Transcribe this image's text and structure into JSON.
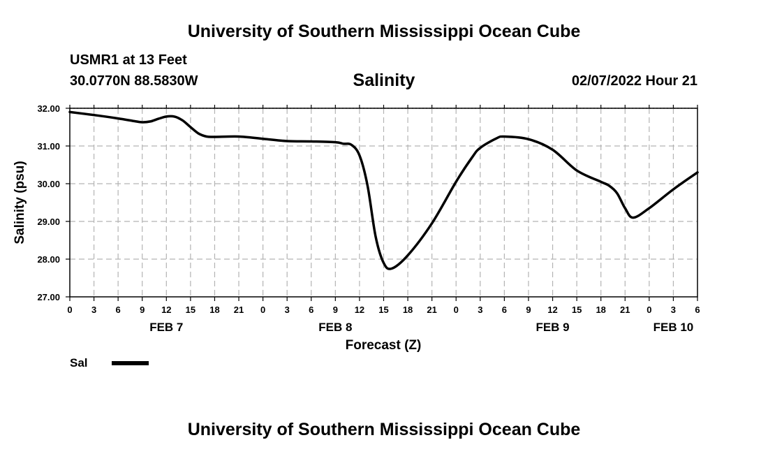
{
  "header": {
    "title": "University of Southern Mississippi Ocean Cube",
    "station": "USMR1 at 13 Feet",
    "coords": "30.0770N  88.5830W",
    "timestamp": "02/07/2022 Hour 21"
  },
  "footer": {
    "title": "University of Southern Mississippi Ocean Cube"
  },
  "legend": {
    "label": "Sal",
    "color": "#000000"
  },
  "chart_data": {
    "type": "line",
    "title": "Salinity",
    "xlabel": "Forecast (Z)",
    "ylabel": "Salinity (psu)",
    "ylim": [
      27,
      32
    ],
    "yticks": [
      "27.00",
      "28.00",
      "29.00",
      "30.00",
      "31.00",
      "32.00"
    ],
    "xlim": [
      0,
      78
    ],
    "xtick_labels": [
      "0",
      "3",
      "6",
      "9",
      "12",
      "15",
      "18",
      "21",
      "0",
      "3",
      "6",
      "9",
      "12",
      "15",
      "18",
      "21",
      "0",
      "3",
      "6",
      "9",
      "12",
      "15",
      "18",
      "21",
      "0",
      "3",
      "6"
    ],
    "day_labels": [
      {
        "label": "FEB 7",
        "hour": 12
      },
      {
        "label": "FEB 8",
        "hour": 33
      },
      {
        "label": "FEB 9",
        "hour": 60
      },
      {
        "label": "FEB 10",
        "hour": 75
      }
    ],
    "series": [
      {
        "name": "Sal",
        "x": [
          0,
          3,
          6,
          8,
          9,
          10,
          11,
          12,
          13,
          14,
          15,
          16,
          17,
          18,
          21,
          24,
          27,
          30,
          33,
          34,
          35,
          36,
          37,
          38,
          39,
          40,
          42,
          45,
          48,
          50,
          51,
          53,
          54,
          57,
          60,
          63,
          66,
          67,
          68,
          69,
          70,
          72,
          75,
          78
        ],
        "y": [
          31.9,
          31.82,
          31.73,
          31.66,
          31.63,
          31.65,
          31.72,
          31.78,
          31.78,
          31.68,
          31.5,
          31.33,
          31.25,
          31.24,
          31.25,
          31.19,
          31.13,
          31.12,
          31.1,
          31.06,
          31.03,
          30.75,
          29.95,
          28.6,
          27.9,
          27.75,
          28.1,
          28.95,
          30.05,
          30.7,
          30.95,
          31.2,
          31.25,
          31.18,
          30.9,
          30.35,
          30.05,
          29.95,
          29.75,
          29.35,
          29.1,
          29.35,
          29.85,
          30.3
        ]
      }
    ]
  }
}
